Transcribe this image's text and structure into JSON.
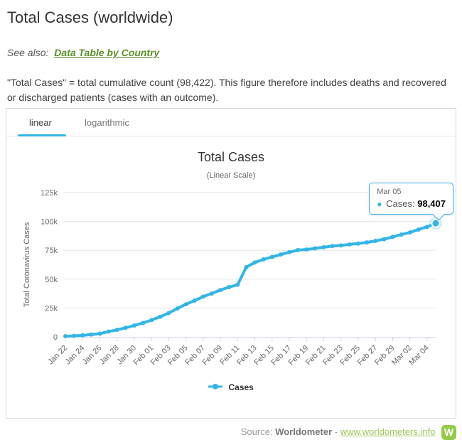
{
  "page": {
    "title": "Total Cases (worldwide)",
    "see_also_prefix": "See also:",
    "see_also_link": "Data Table by Country",
    "description": "\"Total Cases\" = total cumulative count (98,422). This figure therefore includes deaths and recovered or discharged patients (cases with an outcome)."
  },
  "tabs": [
    {
      "label": "linear",
      "active": true
    },
    {
      "label": "logarithmic",
      "active": false
    }
  ],
  "chart_data": {
    "type": "line",
    "title": "Total Cases",
    "subtitle": "(Linear Scale)",
    "ylabel": "Total Coronavirus Cases",
    "series": [
      {
        "name": "Cases",
        "color": "#33b5e6"
      }
    ],
    "x": [
      "Jan 22",
      "Jan 23",
      "Jan 24",
      "Jan 25",
      "Jan 26",
      "Jan 27",
      "Jan 28",
      "Jan 29",
      "Jan 30",
      "Jan 31",
      "Feb 01",
      "Feb 02",
      "Feb 03",
      "Feb 04",
      "Feb 05",
      "Feb 06",
      "Feb 07",
      "Feb 08",
      "Feb 09",
      "Feb 10",
      "Feb 11",
      "Feb 12",
      "Feb 13",
      "Feb 14",
      "Feb 15",
      "Feb 16",
      "Feb 17",
      "Feb 18",
      "Feb 19",
      "Feb 20",
      "Feb 21",
      "Feb 22",
      "Feb 23",
      "Feb 24",
      "Feb 25",
      "Feb 26",
      "Feb 27",
      "Feb 28",
      "Feb 29",
      "Mar 01",
      "Mar 02",
      "Mar 03",
      "Mar 04",
      "Mar 05"
    ],
    "values": [
      580,
      845,
      1317,
      2015,
      2800,
      4581,
      6058,
      7813,
      9823,
      11950,
      14553,
      17391,
      20630,
      24545,
      28266,
      31439,
      34876,
      37552,
      40553,
      43099,
      45134,
      60368,
      64442,
      67100,
      69197,
      71329,
      73332,
      75184,
      75700,
      76677,
      77673,
      78651,
      79205,
      80087,
      80828,
      81820,
      83112,
      84615,
      86604,
      88585,
      90443,
      93016,
      95314,
      98407
    ],
    "ylim": [
      0,
      125000
    ],
    "y_ticks": [
      {
        "value": 0,
        "label": "0"
      },
      {
        "value": 25000,
        "label": "25k"
      },
      {
        "value": 50000,
        "label": "50k"
      },
      {
        "value": 75000,
        "label": "75k"
      },
      {
        "value": 100000,
        "label": "100k"
      },
      {
        "value": 125000,
        "label": "125k"
      }
    ],
    "x_tick_every": 2,
    "grid": "horizontal",
    "legend_position": "bottom"
  },
  "tooltip": {
    "date": "Mar 05",
    "label": "Cases:",
    "value": "98,407"
  },
  "legend": {
    "label": "Cases"
  },
  "footer": {
    "source_prefix": "Source:",
    "source_name": "Worldometer",
    "separator": "-",
    "link_text": "www.worldometers.info",
    "logo_letter": "W"
  },
  "colors": {
    "accent_blue": "#33b5e6",
    "link_green": "#5b8f29",
    "footer_green": "#96ca4b",
    "gridline": "#e6e6e6",
    "axis_line": "#ccd6eb",
    "axis_text": "#666666"
  }
}
